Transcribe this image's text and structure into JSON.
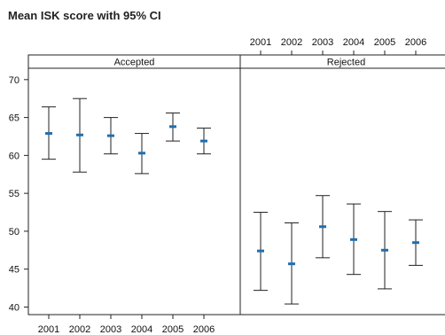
{
  "chart_data": {
    "type": "errorbar",
    "title": "Mean ISK score with 95% CI",
    "categories": [
      "2001",
      "2002",
      "2003",
      "2004",
      "2005",
      "2006"
    ],
    "ylim": [
      39,
      71.5
    ],
    "y_ticks": [
      40,
      45,
      50,
      55,
      60,
      65,
      70
    ],
    "marker_color": "#1f6fb0",
    "panels": [
      {
        "label": "Accepted",
        "mean": [
          62.9,
          62.7,
          62.6,
          60.3,
          63.8,
          61.9
        ],
        "lower": [
          59.5,
          57.8,
          60.2,
          57.6,
          61.9,
          60.2
        ],
        "upper": [
          66.4,
          67.5,
          65.0,
          62.9,
          65.6,
          63.6
        ]
      },
      {
        "label": "Rejected",
        "mean": [
          47.4,
          45.7,
          50.6,
          48.9,
          47.5,
          48.5
        ],
        "lower": [
          42.2,
          40.4,
          46.5,
          44.3,
          42.4,
          45.5
        ],
        "upper": [
          52.5,
          51.1,
          54.7,
          53.6,
          52.6,
          51.5
        ]
      }
    ]
  }
}
